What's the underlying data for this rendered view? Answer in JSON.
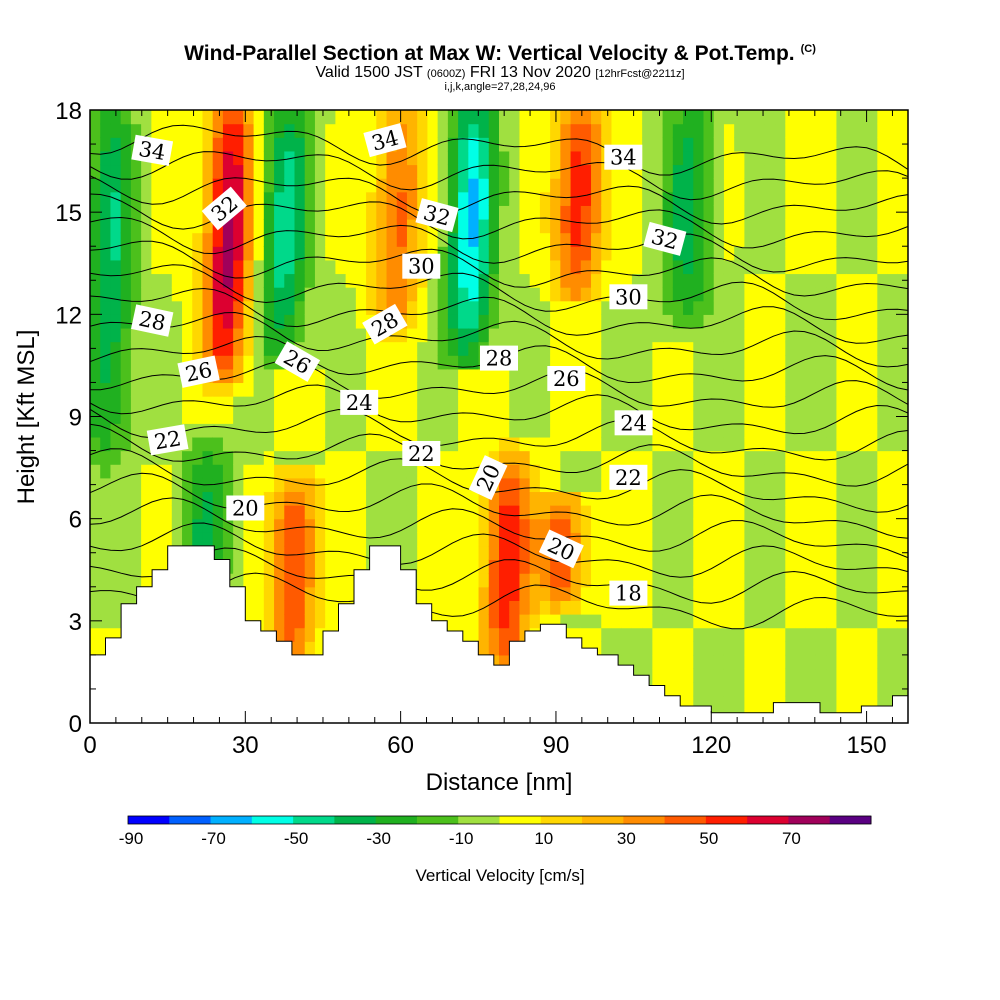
{
  "title": {
    "main": "Wind-Parallel Section at Max W: Vertical Velocity & Pot.Temp.",
    "copyright": "(C)",
    "valid_prefix": "Valid 1500 JST",
    "valid_utc": "(0600Z)",
    "valid_date": "FRI 13 Nov 2020",
    "forecast": "[12hrFcst@2211z]",
    "params": "i,j,k,angle=27,28,24,96"
  },
  "chart_data": {
    "type": "heatmap",
    "xlabel": "Distance [nm]",
    "ylabel": "Height [Kft MSL]",
    "xlim": [
      0,
      158
    ],
    "ylim": [
      0,
      18
    ],
    "xticks": [
      0,
      30,
      60,
      90,
      120,
      150
    ],
    "yticks": [
      0,
      3,
      6,
      9,
      12,
      15,
      18
    ],
    "colorbar": {
      "label": "Vertical Velocity [cm/s]",
      "ticks": [
        -90,
        -70,
        -50,
        -30,
        -10,
        10,
        30,
        50,
        70
      ],
      "levels": [
        -90,
        -80,
        -70,
        -60,
        -50,
        -40,
        -30,
        -20,
        -10,
        0,
        10,
        20,
        30,
        40,
        50,
        60,
        70,
        80
      ],
      "colors": [
        "#0000ff",
        "#0060ff",
        "#00b0ff",
        "#00ffe6",
        "#00d98a",
        "#00b34a",
        "#20b020",
        "#4cc01c",
        "#a0e040",
        "#ffff00",
        "#ffd700",
        "#ffb400",
        "#ff8c00",
        "#ff5a00",
        "#ff1e00",
        "#dc0030",
        "#a0005a",
        "#5a0082"
      ]
    },
    "terrain": [
      [
        0,
        2
      ],
      [
        3,
        2
      ],
      [
        3,
        2.5
      ],
      [
        6,
        2.5
      ],
      [
        6,
        3.5
      ],
      [
        9,
        3.5
      ],
      [
        9,
        4
      ],
      [
        12,
        4
      ],
      [
        12,
        4.5
      ],
      [
        15,
        4.5
      ],
      [
        15,
        5.2
      ],
      [
        24,
        5.2
      ],
      [
        24,
        4.8
      ],
      [
        27,
        4.8
      ],
      [
        27,
        4
      ],
      [
        30,
        4
      ],
      [
        30,
        3
      ],
      [
        33,
        3
      ],
      [
        33,
        2.7
      ],
      [
        36,
        2.7
      ],
      [
        36,
        2.4
      ],
      [
        39,
        2.4
      ],
      [
        39,
        2
      ],
      [
        45,
        2
      ],
      [
        45,
        2.7
      ],
      [
        48,
        2.7
      ],
      [
        48,
        3.5
      ],
      [
        51,
        3.5
      ],
      [
        51,
        4.5
      ],
      [
        54,
        4.5
      ],
      [
        54,
        5.2
      ],
      [
        60,
        5.2
      ],
      [
        60,
        4.5
      ],
      [
        63,
        4.5
      ],
      [
        63,
        3.5
      ],
      [
        66,
        3.5
      ],
      [
        66,
        3
      ],
      [
        69,
        3
      ],
      [
        69,
        2.7
      ],
      [
        72,
        2.7
      ],
      [
        72,
        2.4
      ],
      [
        75,
        2.4
      ],
      [
        75,
        2
      ],
      [
        78,
        2
      ],
      [
        78,
        1.7
      ],
      [
        81,
        1.7
      ],
      [
        81,
        2.4
      ],
      [
        84,
        2.4
      ],
      [
        84,
        2.7
      ],
      [
        87,
        2.7
      ],
      [
        87,
        2.9
      ],
      [
        92,
        2.9
      ],
      [
        92,
        2.5
      ],
      [
        95,
        2.5
      ],
      [
        95,
        2.2
      ],
      [
        98,
        2.2
      ],
      [
        98,
        2
      ],
      [
        102,
        2
      ],
      [
        102,
        1.7
      ],
      [
        105,
        1.7
      ],
      [
        105,
        1.4
      ],
      [
        108,
        1.4
      ],
      [
        108,
        1.1
      ],
      [
        111,
        1.1
      ],
      [
        111,
        0.8
      ],
      [
        114,
        0.8
      ],
      [
        114,
        0.5
      ],
      [
        120,
        0.5
      ],
      [
        120,
        0.3
      ],
      [
        132,
        0.3
      ],
      [
        132,
        0.6
      ],
      [
        141,
        0.6
      ],
      [
        141,
        0.3
      ],
      [
        149,
        0.3
      ],
      [
        149,
        0.5
      ],
      [
        155,
        0.5
      ],
      [
        155,
        0.8
      ],
      [
        158,
        0.8
      ]
    ],
    "updraft_cores": [
      {
        "x": 26,
        "ymin": 10.5,
        "ymax": 18,
        "peak": 75
      },
      {
        "x": 39,
        "ymin": 2.4,
        "ymax": 6.8,
        "peak": 55
      },
      {
        "x": 59,
        "ymin": 12,
        "ymax": 18,
        "peak": 45
      },
      {
        "x": 80,
        "ymin": 2,
        "ymax": 7.5,
        "peak": 60
      },
      {
        "x": 94,
        "ymin": 13,
        "ymax": 18,
        "peak": 60
      },
      {
        "x": 91,
        "ymin": 4,
        "ymax": 6.2,
        "peak": 50
      }
    ],
    "downdraft_cores": [
      {
        "x": 3,
        "ymin": 8,
        "ymax": 18,
        "peak": -40
      },
      {
        "x": 37,
        "ymin": 11,
        "ymax": 18,
        "peak": -45
      },
      {
        "x": 73,
        "ymin": 11,
        "ymax": 18,
        "peak": -60
      },
      {
        "x": 115,
        "ymin": 12,
        "ymax": 18,
        "peak": -35
      },
      {
        "x": 22,
        "ymin": 3.5,
        "ymax": 8,
        "peak": -30
      }
    ],
    "isentrope_labels": [
      {
        "text": "34",
        "x": 12,
        "y": 16.8,
        "angle": 10
      },
      {
        "text": "34",
        "x": 57,
        "y": 17.1,
        "angle": -15
      },
      {
        "text": "34",
        "x": 103,
        "y": 16.6,
        "angle": 0
      },
      {
        "text": "32",
        "x": 26,
        "y": 15.1,
        "angle": -40
      },
      {
        "text": "32",
        "x": 67,
        "y": 14.9,
        "angle": 15
      },
      {
        "text": "32",
        "x": 111,
        "y": 14.2,
        "angle": 15
      },
      {
        "text": "30",
        "x": 64,
        "y": 13.4,
        "angle": 0
      },
      {
        "text": "30",
        "x": 104,
        "y": 12.5,
        "angle": 0
      },
      {
        "text": "28",
        "x": 12,
        "y": 11.8,
        "angle": 12
      },
      {
        "text": "28",
        "x": 57,
        "y": 11.7,
        "angle": -30
      },
      {
        "text": "28",
        "x": 79,
        "y": 10.7,
        "angle": 0
      },
      {
        "text": "26",
        "x": 21,
        "y": 10.3,
        "angle": -12
      },
      {
        "text": "26",
        "x": 40,
        "y": 10.6,
        "angle": 30
      },
      {
        "text": "26",
        "x": 92,
        "y": 10.1,
        "angle": 0
      },
      {
        "text": "24",
        "x": 52,
        "y": 9.4,
        "angle": 0
      },
      {
        "text": "24",
        "x": 105,
        "y": 8.8,
        "angle": 0
      },
      {
        "text": "22",
        "x": 15,
        "y": 8.3,
        "angle": -10
      },
      {
        "text": "22",
        "x": 64,
        "y": 7.9,
        "angle": 0
      },
      {
        "text": "22",
        "x": 104,
        "y": 7.2,
        "angle": 0
      },
      {
        "text": "20",
        "x": 30,
        "y": 6.3,
        "angle": 0
      },
      {
        "text": "20",
        "x": 77,
        "y": 7.2,
        "angle": -65
      },
      {
        "text": "20",
        "x": 91,
        "y": 5.1,
        "angle": 25
      },
      {
        "text": "18",
        "x": 104,
        "y": 3.8,
        "angle": 0
      }
    ],
    "isentrope_levels": [
      17.3,
      16.6,
      15.9,
      15.2,
      14.5,
      13.8,
      13.1,
      12.4,
      11.7,
      11.0,
      10.3,
      9.6,
      8.9,
      8.2,
      7.5,
      6.8,
      6.1,
      5.4,
      4.7,
      4.0
    ]
  }
}
